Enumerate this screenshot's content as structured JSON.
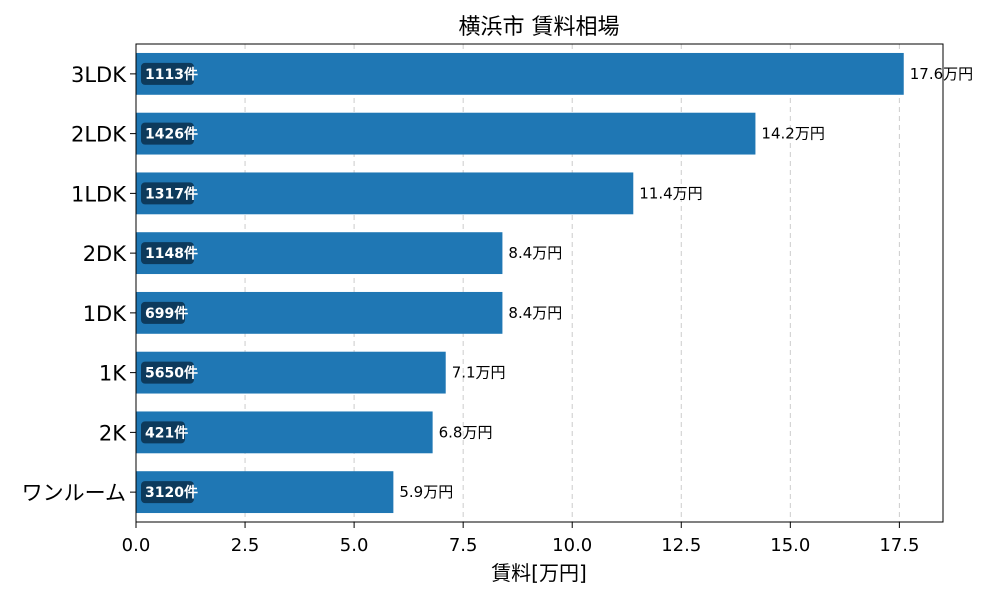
{
  "chart_data": {
    "type": "bar",
    "orientation": "horizontal",
    "title": "横浜市 賃料相場",
    "xlabel": "賃料[万円]",
    "ylabel": "",
    "xlim": [
      0,
      18.5
    ],
    "xticks": [
      "0.0",
      "2.5",
      "5.0",
      "7.5",
      "10.0",
      "12.5",
      "15.0",
      "17.5"
    ],
    "grid": "x-dashed",
    "bar_color": "#1f77b4",
    "count_badge_color": "#0d3a5c",
    "categories": [
      "3LDK",
      "2LDK",
      "1LDK",
      "2DK",
      "1DK",
      "1K",
      "2K",
      "ワンルーム"
    ],
    "values": [
      17.6,
      14.2,
      11.4,
      8.4,
      8.4,
      7.1,
      6.8,
      5.9
    ],
    "value_labels": [
      "17.6万円",
      "14.2万円",
      "11.4万円",
      "8.4万円",
      "8.4万円",
      "7.1万円",
      "6.8万円",
      "5.9万円"
    ],
    "counts": [
      "1113件",
      "1426件",
      "1317件",
      "1148件",
      "699件",
      "5650件",
      "421件",
      "3120件"
    ]
  }
}
